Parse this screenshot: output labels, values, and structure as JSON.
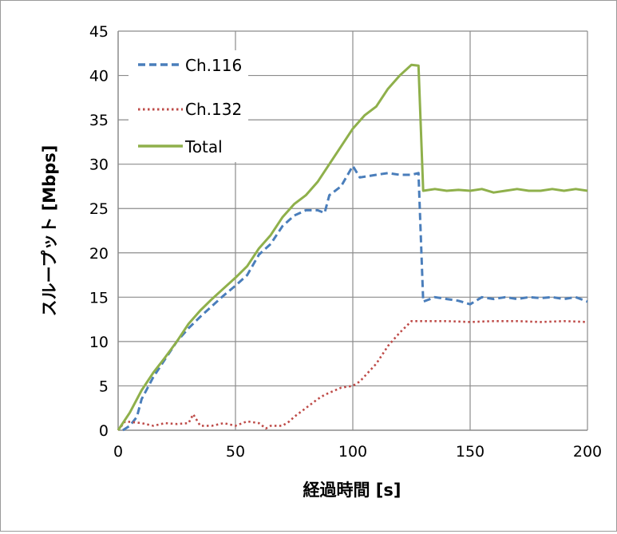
{
  "chart_data": {
    "type": "line",
    "title": "",
    "xlabel": "経過時間 [s]",
    "ylabel": "スループット [Mbps]",
    "xlim": [
      0,
      200
    ],
    "ylim": [
      0,
      45
    ],
    "xticks": [
      0,
      50,
      100,
      150,
      200
    ],
    "yticks": [
      0,
      5,
      10,
      15,
      20,
      25,
      30,
      35,
      40,
      45
    ],
    "grid": true,
    "legend_position": "top-left",
    "series": [
      {
        "name": "Ch.116",
        "color": "#4a7ebb",
        "style": "dashed",
        "points": [
          [
            2,
            0
          ],
          [
            5,
            0.5
          ],
          [
            8,
            1.5
          ],
          [
            10,
            3.5
          ],
          [
            15,
            6
          ],
          [
            20,
            8
          ],
          [
            25,
            10
          ],
          [
            30,
            11.5
          ],
          [
            35,
            12.8
          ],
          [
            40,
            14
          ],
          [
            45,
            15.2
          ],
          [
            50,
            16.3
          ],
          [
            55,
            17.5
          ],
          [
            60,
            19.8
          ],
          [
            65,
            21
          ],
          [
            70,
            23
          ],
          [
            75,
            24.2
          ],
          [
            80,
            24.8
          ],
          [
            85,
            24.8
          ],
          [
            88,
            24.5
          ],
          [
            90,
            26.5
          ],
          [
            95,
            27.5
          ],
          [
            100,
            29.8
          ],
          [
            103,
            28.5
          ],
          [
            110,
            28.8
          ],
          [
            115,
            29
          ],
          [
            120,
            28.8
          ],
          [
            125,
            28.8
          ],
          [
            128,
            29
          ],
          [
            130,
            14.5
          ],
          [
            135,
            15
          ],
          [
            140,
            14.8
          ],
          [
            145,
            14.6
          ],
          [
            150,
            14.2
          ],
          [
            155,
            15
          ],
          [
            160,
            14.8
          ],
          [
            165,
            15
          ],
          [
            170,
            14.8
          ],
          [
            175,
            15
          ],
          [
            180,
            14.9
          ],
          [
            185,
            15
          ],
          [
            190,
            14.8
          ],
          [
            195,
            15
          ],
          [
            200,
            14.5
          ]
        ]
      },
      {
        "name": "Ch.132",
        "color": "#be4b48",
        "style": "dotted",
        "points": [
          [
            0,
            0
          ],
          [
            3,
            1
          ],
          [
            10,
            0.8
          ],
          [
            15,
            0.5
          ],
          [
            20,
            0.8
          ],
          [
            25,
            0.7
          ],
          [
            30,
            0.8
          ],
          [
            32,
            1.8
          ],
          [
            35,
            0.5
          ],
          [
            40,
            0.5
          ],
          [
            45,
            0.8
          ],
          [
            50,
            0.5
          ],
          [
            55,
            1
          ],
          [
            60,
            0.8
          ],
          [
            63,
            0.2
          ],
          [
            65,
            0.5
          ],
          [
            70,
            0.5
          ],
          [
            73,
            1
          ],
          [
            75,
            1.5
          ],
          [
            80,
            2.5
          ],
          [
            85,
            3.5
          ],
          [
            88,
            4
          ],
          [
            95,
            4.8
          ],
          [
            100,
            5
          ],
          [
            103,
            5.5
          ],
          [
            110,
            7.5
          ],
          [
            115,
            9.5
          ],
          [
            120,
            11
          ],
          [
            125,
            12.3
          ],
          [
            130,
            12.3
          ],
          [
            140,
            12.3
          ],
          [
            150,
            12.2
          ],
          [
            160,
            12.3
          ],
          [
            170,
            12.3
          ],
          [
            180,
            12.2
          ],
          [
            190,
            12.3
          ],
          [
            200,
            12.2
          ]
        ]
      },
      {
        "name": "Total",
        "color": "#8fb04b",
        "style": "solid",
        "points": [
          [
            0,
            0
          ],
          [
            5,
            2
          ],
          [
            10,
            4.5
          ],
          [
            15,
            6.5
          ],
          [
            20,
            8.2
          ],
          [
            25,
            10
          ],
          [
            30,
            12
          ],
          [
            35,
            13.5
          ],
          [
            40,
            14.8
          ],
          [
            45,
            16
          ],
          [
            50,
            17.2
          ],
          [
            55,
            18.5
          ],
          [
            60,
            20.5
          ],
          [
            65,
            22
          ],
          [
            70,
            24
          ],
          [
            75,
            25.5
          ],
          [
            80,
            26.5
          ],
          [
            85,
            28
          ],
          [
            90,
            30
          ],
          [
            95,
            32
          ],
          [
            100,
            34
          ],
          [
            105,
            35.5
          ],
          [
            110,
            36.5
          ],
          [
            115,
            38.5
          ],
          [
            120,
            40
          ],
          [
            125,
            41.2
          ],
          [
            128,
            41.1
          ],
          [
            130,
            27
          ],
          [
            135,
            27.2
          ],
          [
            140,
            27
          ],
          [
            145,
            27.1
          ],
          [
            150,
            27
          ],
          [
            155,
            27.2
          ],
          [
            160,
            26.8
          ],
          [
            165,
            27
          ],
          [
            170,
            27.2
          ],
          [
            175,
            27
          ],
          [
            180,
            27
          ],
          [
            185,
            27.2
          ],
          [
            190,
            27
          ],
          [
            195,
            27.2
          ],
          [
            200,
            27
          ]
        ]
      }
    ]
  }
}
